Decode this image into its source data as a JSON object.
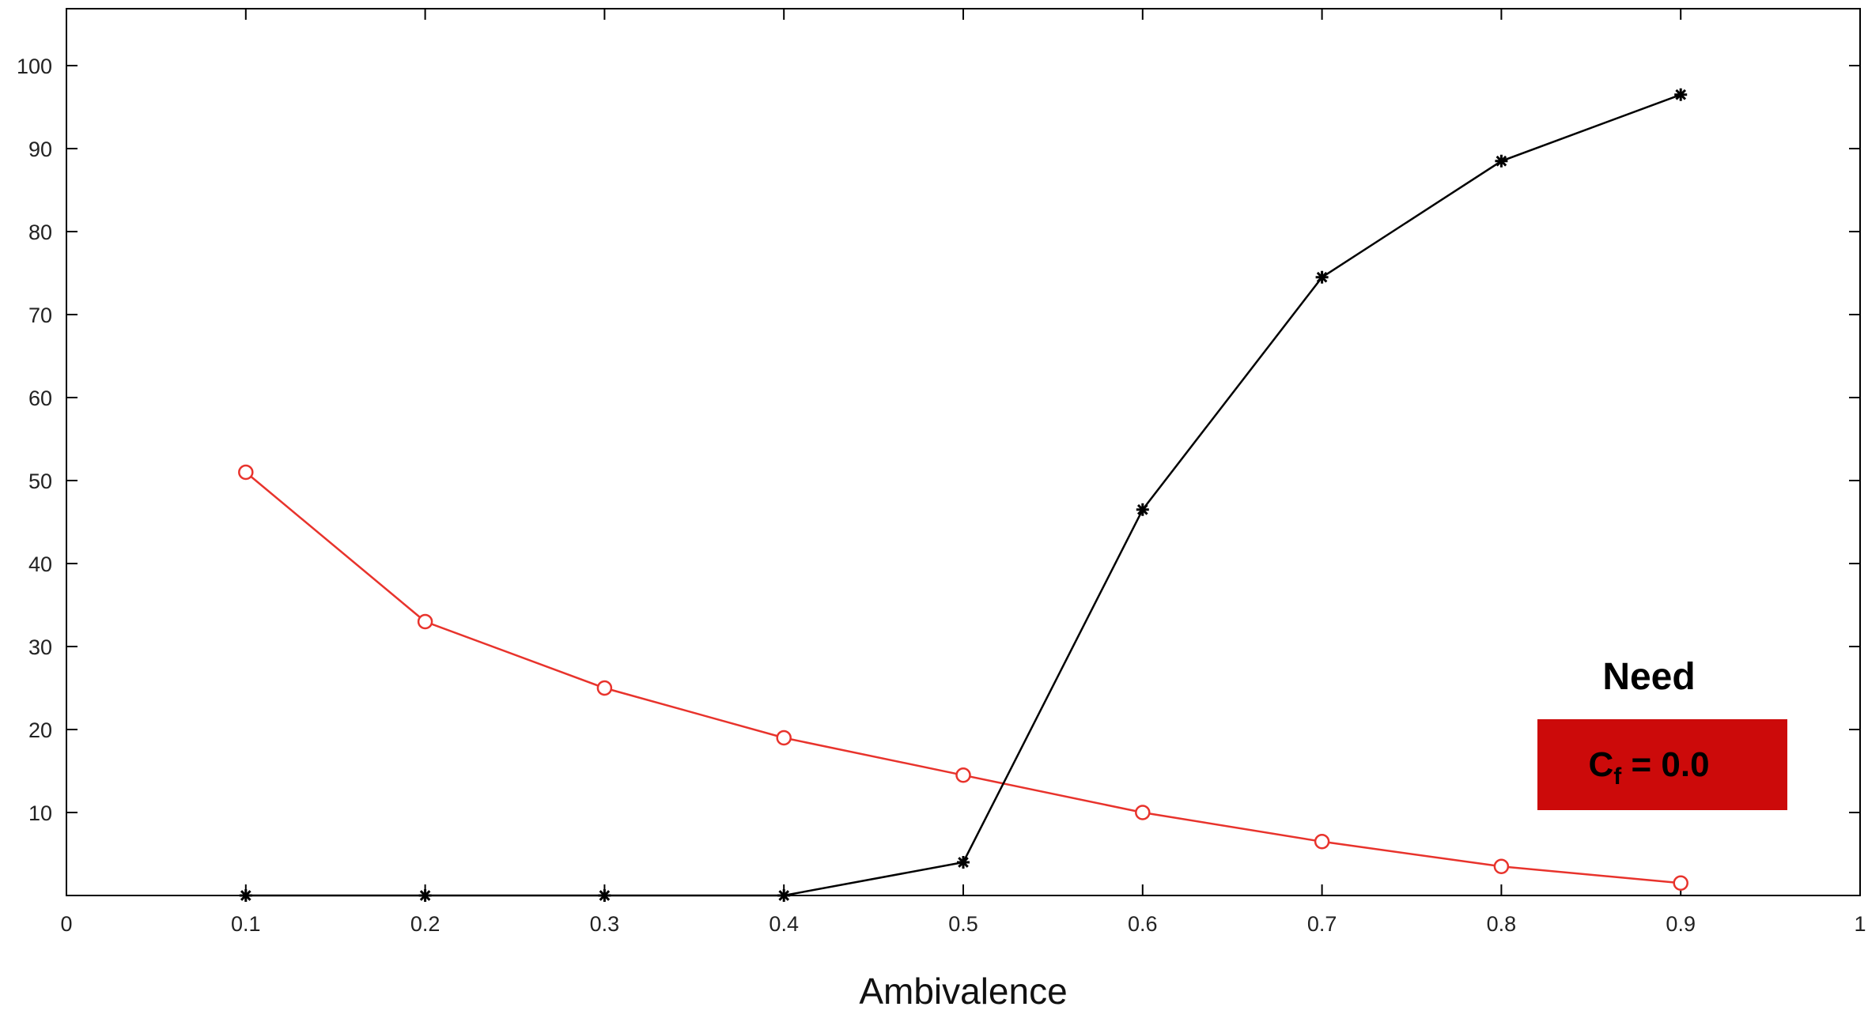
{
  "chart_data": {
    "type": "line",
    "title": "",
    "xlabel": "Ambivalence",
    "ylabel": "",
    "xlim": [
      0,
      1
    ],
    "ylim": [
      0,
      105
    ],
    "x_ticks": [
      0,
      0.1,
      0.2,
      0.3,
      0.4,
      0.5,
      0.6,
      0.7,
      0.8,
      0.9,
      1
    ],
    "x_tick_labels": [
      "0",
      "0.1",
      "0.2",
      "0.3",
      "0.4",
      "0.5",
      "0.6",
      "0.7",
      "0.8",
      "0.9",
      "1"
    ],
    "y_ticks": [
      10,
      20,
      30,
      40,
      50,
      60,
      70,
      80,
      90,
      100
    ],
    "y_tick_labels": [
      "10",
      "20",
      "30",
      "40",
      "50",
      "60",
      "70",
      "80",
      "90",
      "100"
    ],
    "grid": false,
    "legend": null,
    "series": [
      {
        "color": "#e8332c",
        "marker": "circle",
        "x": [
          0.1,
          0.2,
          0.3,
          0.4,
          0.5,
          0.6,
          0.7,
          0.8,
          0.9
        ],
        "y": [
          51,
          33,
          25,
          19,
          14.5,
          10,
          6.5,
          3.5,
          1.5
        ]
      },
      {
        "color": "#000000",
        "marker": "star",
        "x": [
          0.1,
          0.2,
          0.3,
          0.4,
          0.5,
          0.6,
          0.7,
          0.8,
          0.9
        ],
        "y": [
          0,
          0,
          0,
          0,
          4,
          46.5,
          74.5,
          88.5,
          96.5
        ]
      }
    ],
    "annotation": {
      "title": "Need",
      "box_color": "#cc0a0a",
      "label_main": "C",
      "label_sub": "f",
      "label_rest": " = 0.0"
    }
  }
}
